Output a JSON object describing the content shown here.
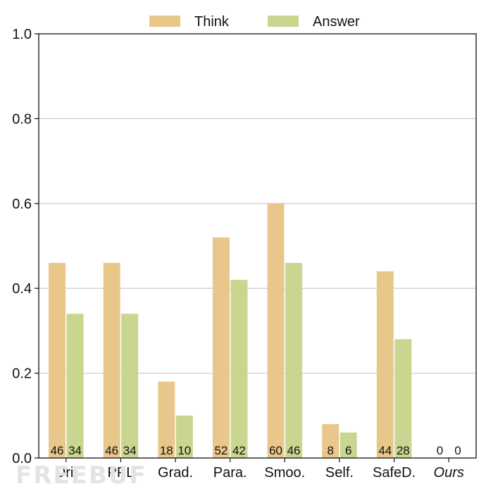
{
  "chart_data": {
    "type": "bar",
    "categories": [
      "Ori.",
      "PPL",
      "Grad.",
      "Para.",
      "Smoo.",
      "Self.",
      "SafeD.",
      "Ours"
    ],
    "italic_categories": [
      "Ours"
    ],
    "series": [
      {
        "name": "Think",
        "color": "#e9c78b",
        "values": [
          0.46,
          0.46,
          0.18,
          0.52,
          0.6,
          0.08,
          0.44,
          0.0
        ],
        "labels": [
          "46",
          "46",
          "18",
          "52",
          "60",
          "8",
          "44",
          "0"
        ]
      },
      {
        "name": "Answer",
        "color": "#c8d68f",
        "values": [
          0.34,
          0.34,
          0.1,
          0.42,
          0.46,
          0.06,
          0.28,
          0.0
        ],
        "labels": [
          "34",
          "34",
          "10",
          "42",
          "46",
          "6",
          "28",
          "0"
        ]
      }
    ],
    "ylim": [
      0,
      1.0
    ],
    "yticks": [
      "0.0",
      "0.2",
      "0.4",
      "0.6",
      "0.8",
      "1.0"
    ],
    "grid": "horizontal",
    "legend_position": "top-center",
    "title": "",
    "xlabel": "",
    "ylabel": ""
  },
  "watermark": "FREEBUF"
}
